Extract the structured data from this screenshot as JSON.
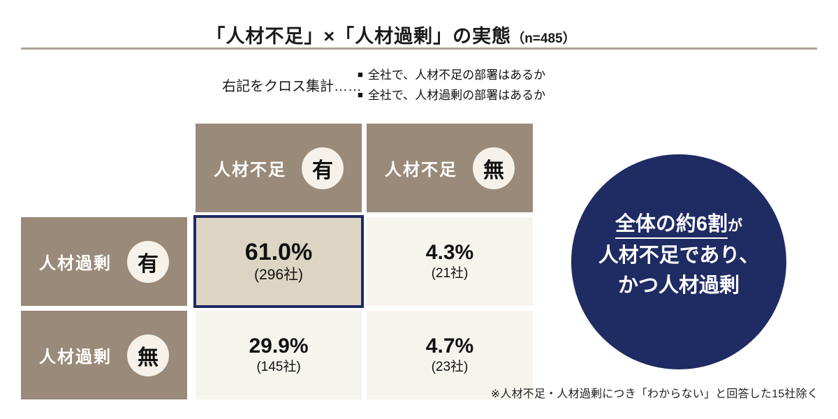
{
  "title": {
    "main": "「人材不足」×「人材過剰」の実態",
    "sample": "（n=485）"
  },
  "note": {
    "label": "右記をクロス集計……",
    "bullet": "■",
    "items": [
      "全社で、人材不足の部署はあるか",
      "全社で、人材過剰の部署はあるか"
    ]
  },
  "matrix": {
    "col_headers": [
      {
        "label": "人材不足",
        "badge": "有"
      },
      {
        "label": "人材不足",
        "badge": "無"
      }
    ],
    "row_headers": [
      {
        "label": "人材過剰",
        "badge": "有"
      },
      {
        "label": "人材過剰",
        "badge": "無"
      }
    ],
    "cells": [
      {
        "percent": "61.0%",
        "count": "(296社)",
        "highlight": true
      },
      {
        "percent": "4.3%",
        "count": "(21社)",
        "highlight": false
      },
      {
        "percent": "29.9%",
        "count": "(145社)",
        "highlight": false
      },
      {
        "percent": "4.7%",
        "count": "(23社)",
        "highlight": false
      }
    ]
  },
  "callout": {
    "line1_underlined": "全体の約6割",
    "line1_suffix": "が",
    "line2": "人材不足であり、",
    "line3": "かつ人材過剰"
  },
  "footnote": "※人材不足・人材過剰につき「わからない」と回答した15社除く",
  "colors": {
    "header_brown": "#9a8a79",
    "cell_cream": "#f7f4ee",
    "badge_cream": "#f6f2e9",
    "highlight_bg": "#ddd5c4",
    "accent_navy": "#1f2b63",
    "divider_tan": "#b0a496"
  },
  "chart_data": {
    "type": "table",
    "title": "「人材不足」×「人材過剰」の実態",
    "n": 485,
    "columns": [
      "人材不足 有",
      "人材不足 無"
    ],
    "rows": [
      "人材過剰 有",
      "人材過剰 無"
    ],
    "values_percent": [
      [
        61.0,
        4.3
      ],
      [
        29.9,
        4.7
      ]
    ],
    "values_count": [
      [
        296,
        21
      ],
      [
        145,
        23
      ]
    ],
    "highlighted_cell": {
      "row": "人材過剰 有",
      "column": "人材不足 有",
      "percent": 61.0,
      "count": 296
    },
    "annotation": "全体の約6割が人材不足であり、かつ人材過剰",
    "footnote": "※人材不足・人材過剰につき「わからない」と回答した15社除く"
  }
}
